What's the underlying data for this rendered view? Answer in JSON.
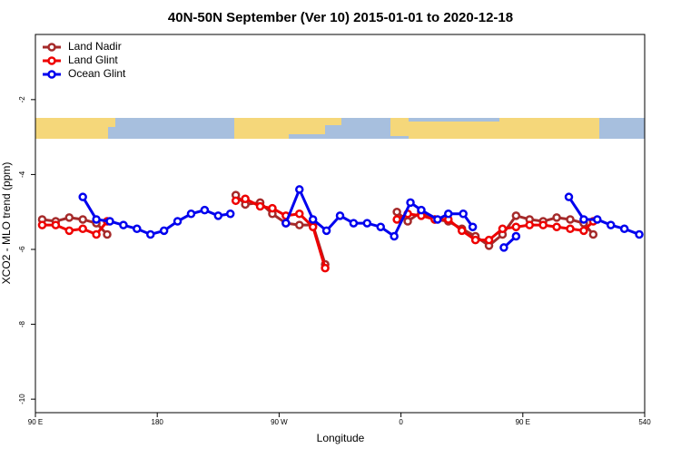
{
  "chart_data": {
    "type": "line",
    "title": "40N-50N September (Ver 10)   2015-01-01 to 2020-12-18",
    "x_label": "Longitude",
    "y_label": "XCO2 - MLO trend (ppm)",
    "xlim": [
      90,
      540
    ],
    "ylim": [
      -10.36,
      -0.26
    ],
    "xticks": [
      {
        "value": 90,
        "label": "90 E"
      },
      180,
      {
        "value": 270,
        "label": "90 W"
      },
      {
        "value": 360,
        "label": "0"
      },
      {
        "value": 450,
        "label": "90 E"
      },
      540
    ],
    "yticks": [
      -2,
      -4,
      -6,
      -8,
      -10
    ],
    "legend": "top-left",
    "series": [
      {
        "name": "Land Nadir",
        "color": "#a52a2a",
        "x": [
          95,
          105,
          115,
          125,
          135,
          143,
          null,
          238,
          245,
          256,
          265,
          275,
          285,
          295,
          304,
          null,
          357,
          365,
          375,
          385,
          395,
          405,
          415,
          425,
          435,
          445,
          455,
          465,
          475,
          485,
          495,
          502
        ],
        "values": [
          -5.2,
          -5.25,
          -5.15,
          -5.2,
          -5.3,
          -5.6,
          null,
          -4.55,
          -4.8,
          -4.75,
          -5.05,
          -5.3,
          -5.35,
          -5.35,
          -6.4,
          null,
          -5.0,
          -5.25,
          -5.0,
          -5.2,
          -5.25,
          -5.45,
          -5.65,
          -5.9,
          -5.6,
          -5.1,
          -5.2,
          -5.25,
          -5.15,
          -5.2,
          -5.3,
          -5.6
        ]
      },
      {
        "name": "Land Glint",
        "color": "#ee0000",
        "x": [
          95,
          105,
          115,
          125,
          135,
          143,
          null,
          238,
          245,
          256,
          265,
          275,
          285,
          295,
          304,
          null,
          357,
          365,
          375,
          385,
          395,
          405,
          415,
          425,
          435,
          445,
          455,
          465,
          475,
          485,
          495,
          502
        ],
        "values": [
          -5.35,
          -5.35,
          -5.5,
          -5.45,
          -5.6,
          -5.25,
          null,
          -4.7,
          -4.65,
          -4.85,
          -4.9,
          -5.1,
          -5.05,
          -5.4,
          -6.5,
          null,
          -5.2,
          -5.05,
          -5.1,
          -5.2,
          -5.2,
          -5.5,
          -5.75,
          -5.75,
          -5.45,
          -5.4,
          -5.35,
          -5.35,
          -5.4,
          -5.45,
          -5.5,
          -5.25
        ]
      },
      {
        "name": "Ocean Glint",
        "color": "#0000ee",
        "x": [
          125,
          135,
          145,
          155,
          165,
          175,
          185,
          195,
          205,
          215,
          225,
          234,
          null,
          275,
          285,
          295,
          305,
          315,
          325,
          335,
          345,
          355,
          367,
          375,
          387,
          395,
          406,
          413,
          null,
          436,
          445,
          null,
          484,
          495,
          505,
          515,
          525,
          536
        ],
        "values": [
          -4.6,
          -5.2,
          -5.25,
          -5.35,
          -5.45,
          -5.6,
          -5.5,
          -5.25,
          -5.05,
          -4.95,
          -5.1,
          -5.05,
          null,
          -5.3,
          -4.4,
          -5.2,
          -5.5,
          -5.1,
          -5.3,
          -5.3,
          -5.4,
          -5.65,
          -4.75,
          -4.95,
          -5.2,
          -5.05,
          -5.05,
          -5.4,
          null,
          -5.95,
          -5.65,
          null,
          -4.6,
          -5.2,
          -5.2,
          -5.35,
          -5.45,
          -5.6
        ]
      }
    ]
  }
}
